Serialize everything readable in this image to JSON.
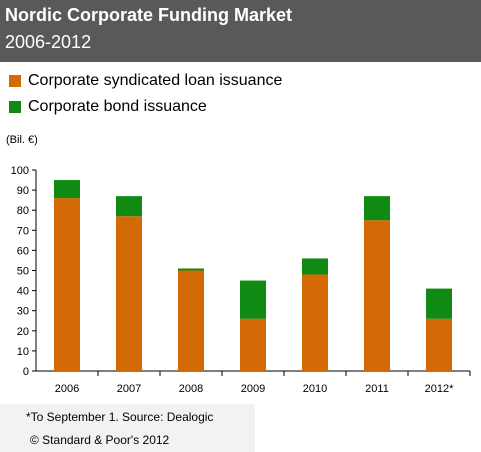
{
  "header": {
    "title": "Nordic Corporate Funding Market",
    "subtitle": "2006-2012"
  },
  "legend": {
    "items": [
      {
        "label": "Corporate syndicated loan issuance",
        "color": "#d46a06"
      },
      {
        "label": "Corporate bond issuance",
        "color": "#118a13"
      }
    ]
  },
  "notes": {
    "footnote": "*To September 1. Source: Dealogic",
    "copyright": "© Standard & Poor's 2012"
  },
  "chart_data": {
    "type": "bar",
    "stacked": true,
    "unit_label": "(Bil. €)",
    "categories": [
      "2006",
      "2007",
      "2008",
      "2009",
      "2010",
      "2011",
      "2012*"
    ],
    "series": [
      {
        "name": "Corporate syndicated loan issuance",
        "color": "#d46a06",
        "values": [
          86,
          77,
          50,
          26,
          48,
          75,
          26
        ]
      },
      {
        "name": "Corporate bond issuance",
        "color": "#118a13",
        "values": [
          9,
          10,
          1,
          19,
          8,
          12,
          15
        ]
      }
    ],
    "ylim": [
      0,
      100
    ],
    "yticks": [
      0,
      10,
      20,
      30,
      40,
      50,
      60,
      70,
      80,
      90,
      100
    ],
    "grid": false,
    "legend_position": "top-left"
  }
}
